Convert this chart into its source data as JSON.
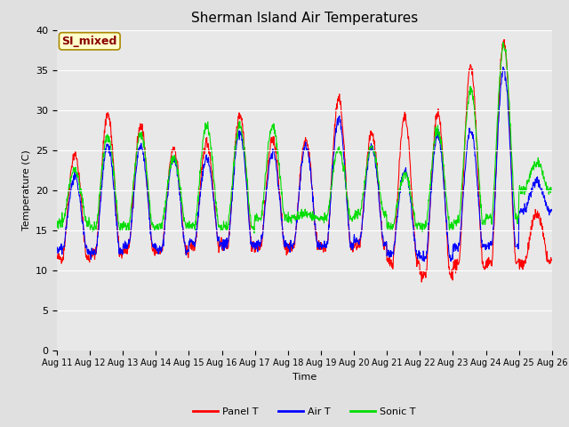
{
  "title": "Sherman Island Air Temperatures",
  "xlabel": "Time",
  "ylabel": "Temperature (C)",
  "ylim": [
    0,
    40
  ],
  "yticks": [
    0,
    5,
    10,
    15,
    20,
    25,
    30,
    35,
    40
  ],
  "annotation_text": "SI_mixed",
  "annotation_color": "#8B0000",
  "annotation_bg": "#FFFFCC",
  "legend_labels": [
    "Panel T",
    "Air T",
    "Sonic T"
  ],
  "line_colors": [
    "#FF0000",
    "#0000FF",
    "#00DD00"
  ],
  "fig_bg_color": "#E0E0E0",
  "plot_bg_color": "#E8E8E8",
  "grid_color": "#FFFFFF",
  "n_days": 15,
  "pts_per_day": 96,
  "panel_t_base": [
    11.5,
    12.0,
    12.5,
    12.3,
    13.0,
    13.0,
    12.8,
    12.8,
    12.8,
    13.0,
    11.0,
    9.5,
    10.5,
    11.0,
    11.0
  ],
  "panel_t_amp": [
    13.0,
    17.5,
    15.5,
    13.0,
    13.0,
    16.5,
    13.5,
    13.5,
    18.5,
    14.0,
    18.0,
    20.0,
    25.0,
    27.5,
    6.0
  ],
  "air_t_base": [
    12.5,
    12.2,
    13.0,
    12.5,
    13.5,
    13.2,
    13.2,
    13.0,
    13.0,
    13.5,
    12.0,
    11.5,
    13.0,
    13.0,
    17.5
  ],
  "air_t_amp": [
    9.0,
    13.5,
    12.5,
    11.5,
    10.5,
    14.0,
    11.5,
    12.5,
    16.0,
    12.0,
    10.5,
    15.5,
    14.5,
    22.0,
    3.5
  ],
  "sonic_t_base": [
    16.0,
    15.3,
    15.5,
    15.5,
    15.5,
    15.5,
    16.5,
    16.5,
    16.5,
    17.0,
    15.5,
    15.5,
    16.0,
    16.5,
    20.0
  ],
  "sonic_t_amp": [
    6.5,
    11.5,
    11.5,
    8.5,
    12.5,
    12.5,
    11.5,
    0.5,
    8.5,
    8.5,
    6.5,
    12.0,
    16.5,
    21.5,
    3.5
  ]
}
